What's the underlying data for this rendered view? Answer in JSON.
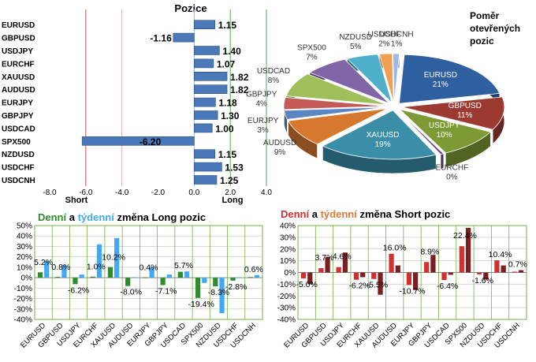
{
  "colors": {
    "bar_blue": "#4a78b8",
    "short_line": "#c0504d",
    "long_line": "#4caf50",
    "zero_line": "#9bb7d4",
    "grid_green": "#76b043",
    "daily_long": "#2e8b2e",
    "weekly_long": "#3fa9f5",
    "daily_short": "#d32f2f",
    "weekly_short": "#7a2020",
    "title_green": "#2e8b2e",
    "title_blue": "#3fa9f5",
    "title_red": "#d32f2f",
    "title_orange": "#e07b39"
  },
  "chart_data": [
    {
      "type": "bar",
      "orientation": "horizontal",
      "title": "Pozice",
      "categories": [
        "EURUSD",
        "GBPUSD",
        "USDJPY",
        "EURCHF",
        "XAUUSD",
        "AUDUSD",
        "EURJPY",
        "GBPJPY",
        "USDCAD",
        "SPX500",
        "NZDUSD",
        "USDCHF",
        "USDCNH"
      ],
      "values": [
        1.15,
        -1.16,
        1.4,
        1.07,
        1.82,
        1.82,
        1.18,
        1.3,
        1.0,
        -6.2,
        1.15,
        1.53,
        1.25
      ],
      "value_labels": [
        "1.15",
        "-1.16",
        "1.40",
        "1.07",
        "1.82",
        "1.82",
        "1.18",
        "1.30",
        "1.00",
        "-6.20",
        "1.15",
        "1.53",
        "1.25"
      ],
      "xlim": [
        -8.0,
        4.0
      ],
      "xticks": [
        "-8.0",
        "-6.0",
        "-4.0",
        "-2.0",
        "0.0",
        "2.0",
        "4.0"
      ],
      "short_label": "Short",
      "long_label": "Long"
    },
    {
      "type": "pie",
      "title_lines": [
        "Poměr",
        "otevřených",
        "pozic"
      ],
      "slices": [
        {
          "label": "EURUSD",
          "value": 21,
          "text": "21%",
          "color": "#2e5f9e"
        },
        {
          "label": "GBPUSD",
          "value": 11,
          "text": "11%",
          "color": "#9c3a32"
        },
        {
          "label": "USDJPY",
          "value": 10,
          "text": "10%",
          "color": "#7d9a35"
        },
        {
          "label": "EURCHF",
          "value": 0.5,
          "text": "0%",
          "color": "#6a4a8c"
        },
        {
          "label": "XAUUSD",
          "value": 19,
          "text": "19%",
          "color": "#3a8ea8"
        },
        {
          "label": "AUDUSD",
          "value": 9,
          "text": "9%",
          "color": "#d7782f"
        },
        {
          "label": "EURJPY",
          "value": 3,
          "text": "3%",
          "color": "#5b86c4"
        },
        {
          "label": "GBPJPY",
          "value": 4,
          "text": "4%",
          "color": "#c25b55"
        },
        {
          "label": "USDCAD",
          "value": 8,
          "text": "8%",
          "color": "#9fbf5a"
        },
        {
          "label": "SPX500",
          "value": 7,
          "text": "7%",
          "color": "#8066a6"
        },
        {
          "label": "NZDUSD",
          "value": 5,
          "text": "5%",
          "color": "#4fb0cc"
        },
        {
          "label": "USDCHF",
          "value": 2,
          "text": "2%",
          "color": "#f0a050"
        },
        {
          "label": "USDCNH",
          "value": 1,
          "text": "1%",
          "color": "#9db7e0"
        }
      ]
    },
    {
      "type": "bar",
      "title_parts": [
        "Denní",
        " a ",
        "týdenní",
        " změna Long pozic"
      ],
      "categories": [
        "EURUSD",
        "GBPUSD",
        "USDJPY",
        "EURCHF",
        "XAUUSD",
        "AUDUSD",
        "EURJPY",
        "GBPJPY",
        "USDCAD",
        "SPX500",
        "NZDUSD",
        "USDCHF",
        "USDCNH"
      ],
      "series": [
        {
          "name": "Denní",
          "values": [
            5.2,
            0.8,
            -6.2,
            1.0,
            10.2,
            -8.0,
            0.4,
            -7.1,
            5.7,
            -19.4,
            -8.3,
            -2.8,
            0.6
          ]
        },
        {
          "name": "týdenní",
          "values": [
            16.0,
            12.0,
            3.0,
            32.0,
            38.0,
            0.5,
            10.0,
            3.0,
            6.0,
            -5.0,
            -34.0,
            0.5,
            2.5
          ]
        }
      ],
      "labels": [
        "5.2%",
        "0.8%",
        "-6.2%",
        "1.0%",
        "10.2%",
        "-8.0%",
        "0.4%",
        "-7.1%",
        "5.7%",
        "-19.4%",
        "-8.3%",
        "-2.8%",
        "0.6%"
      ],
      "ylim": [
        -40,
        50
      ],
      "yticks": [
        "50%",
        "40%",
        "30%",
        "20%",
        "10%",
        "0%",
        "-10%",
        "-20%",
        "-30%",
        "-40%"
      ]
    },
    {
      "type": "bar",
      "title_parts": [
        "Denní",
        " a ",
        "týdenní",
        " změna Short pozic"
      ],
      "categories": [
        "EURUSD",
        "GBPUSD",
        "USDJPY",
        "EURCHF",
        "XAUUSD",
        "AUDUSD",
        "EURJPY",
        "GBPJPY",
        "USDCAD",
        "SPX500",
        "NZDUSD",
        "USDCHF",
        "USDCNH"
      ],
      "series": [
        {
          "name": "Denní",
          "values": [
            -5.0,
            3.7,
            4.6,
            -6.2,
            -5.5,
            16.0,
            -10.7,
            8.9,
            -6.4,
            22.4,
            -1.6,
            10.4,
            0.7
          ]
        },
        {
          "name": "týdenní",
          "values": [
            -10.0,
            13.0,
            17.0,
            -4.0,
            -19.0,
            6.0,
            -15.0,
            15.0,
            -2.0,
            38.0,
            -6.0,
            6.0,
            2.0
          ]
        }
      ],
      "labels": [
        "-5.0%",
        "3.7%",
        "4.6%",
        "-6.2%",
        "-5.5%",
        "16.0%",
        "-10.7%",
        "8.9%",
        "-6.4%",
        "22.4%",
        "-1.6%",
        "10.4%",
        "0.7%"
      ],
      "ylim": [
        -40,
        40
      ],
      "yticks": [
        "40%",
        "30%",
        "20%",
        "10%",
        "0%",
        "-10%",
        "-20%",
        "-30%",
        "-40%"
      ]
    }
  ]
}
